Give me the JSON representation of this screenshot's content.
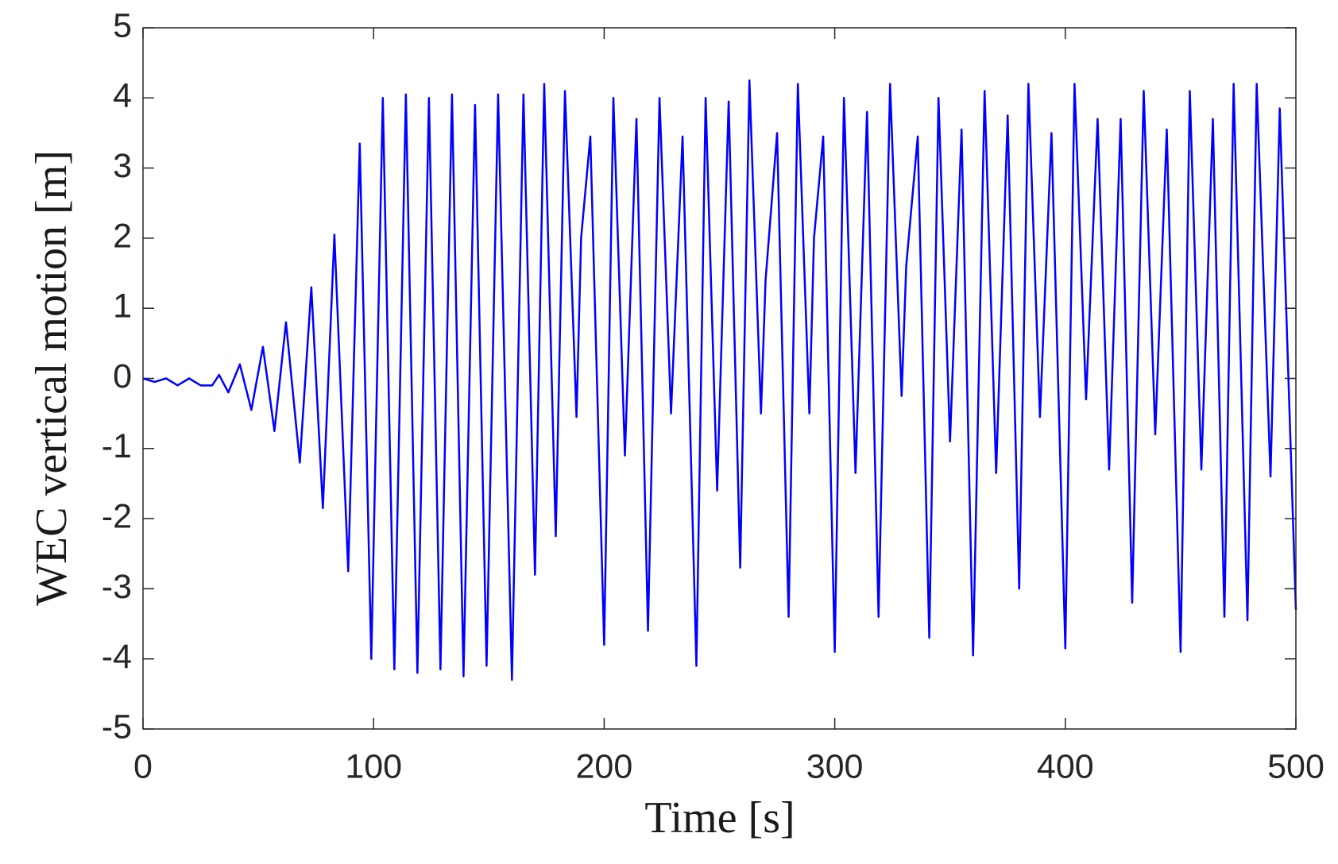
{
  "chart_data": {
    "type": "line",
    "xlabel": "Time [s]",
    "ylabel": "WEC vertical motion [m]",
    "color": "#0000ff",
    "xlim": [
      0,
      500
    ],
    "xticks": [
      0,
      100,
      200,
      300,
      400,
      500
    ],
    "ylim": [
      -5,
      5
    ],
    "yticks": [
      -5,
      -4,
      -3,
      -2,
      -1,
      0,
      1,
      2,
      3,
      4,
      5
    ],
    "x": [
      0,
      5,
      10,
      15,
      20,
      25,
      30,
      33,
      37,
      42,
      47,
      52,
      57,
      62,
      68,
      73,
      78,
      83,
      89,
      94,
      99,
      104,
      109,
      114,
      119,
      124,
      129,
      134,
      139,
      144,
      149,
      154,
      160,
      165,
      170,
      174,
      179,
      183,
      188,
      190,
      194,
      200,
      204,
      209,
      214,
      219,
      224,
      229,
      234,
      240,
      244,
      249,
      254,
      259,
      263,
      268,
      270,
      275,
      280,
      284,
      289,
      291,
      295,
      300,
      304,
      309,
      314,
      319,
      324,
      329,
      331,
      336,
      341,
      345,
      350,
      355,
      360,
      365,
      370,
      375,
      380,
      384,
      389,
      394,
      400,
      404,
      409,
      414,
      419,
      424,
      429,
      434,
      439,
      444,
      450,
      454,
      459,
      464,
      469,
      473,
      479,
      483,
      489,
      493,
      500
    ],
    "values": [
      0,
      -0.05,
      0,
      -0.1,
      0,
      -0.1,
      -0.1,
      0.05,
      -0.2,
      0.2,
      -0.45,
      0.45,
      -0.75,
      0.8,
      -1.2,
      1.3,
      -1.85,
      2.05,
      -2.75,
      3.35,
      -4.0,
      4.0,
      -4.15,
      4.05,
      -4.2,
      4.0,
      -4.15,
      4.05,
      -4.25,
      3.9,
      -4.1,
      4.05,
      -4.3,
      4.05,
      -2.8,
      4.2,
      -2.25,
      4.1,
      -0.55,
      2.0,
      3.45,
      -3.8,
      4.0,
      -1.1,
      3.7,
      -3.6,
      4.0,
      -0.5,
      3.45,
      -4.1,
      4.0,
      -1.6,
      3.95,
      -2.7,
      4.25,
      -0.5,
      1.4,
      3.5,
      -3.4,
      4.2,
      -0.5,
      2.0,
      3.45,
      -3.9,
      4.0,
      -1.35,
      3.8,
      -3.4,
      4.2,
      -0.25,
      1.6,
      3.45,
      -3.7,
      4.0,
      -0.9,
      3.55,
      -3.95,
      4.1,
      -1.35,
      3.75,
      -3.0,
      4.2,
      -0.55,
      3.5,
      -3.85,
      4.2,
      -0.3,
      3.7,
      -1.3,
      3.7,
      -3.2,
      4.1,
      -0.8,
      3.55,
      -3.9,
      4.1,
      -1.3,
      3.7,
      -3.4,
      4.2,
      -3.45,
      4.2,
      -1.4,
      3.85,
      -3.3
    ]
  }
}
